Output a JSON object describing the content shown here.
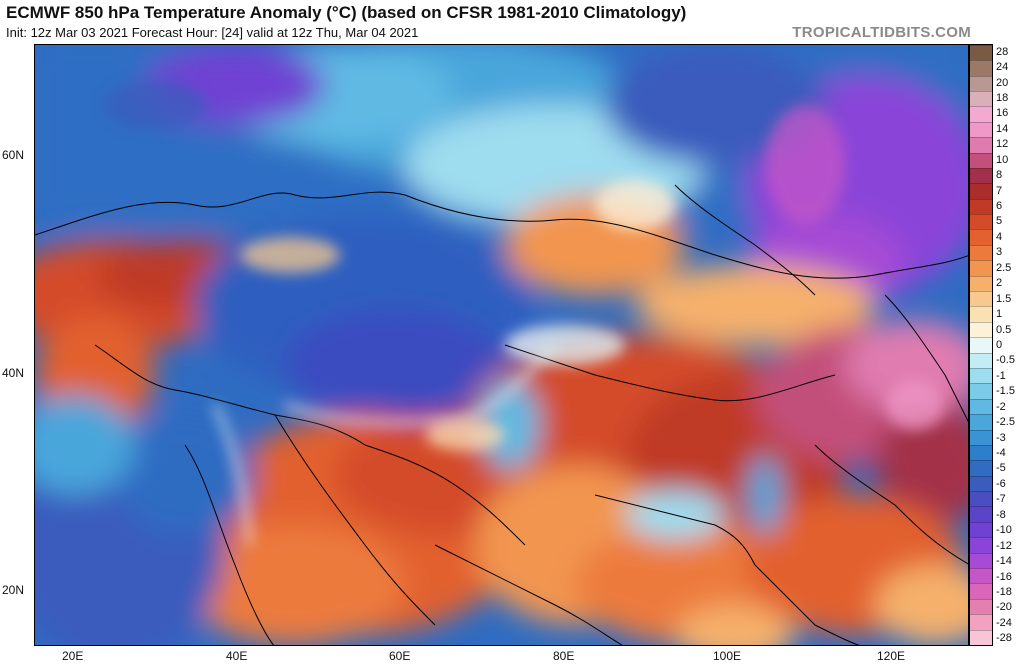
{
  "header": {
    "title": "ECMWF 850 hPa Temperature Anomaly (°C) (based on CFSR 1981-2010 Climatology)",
    "subtitle": "Init: 12z Mar 03 2021   Forecast Hour: [24]   valid at 12z Thu, Mar 04 2021",
    "brand": "TROPICALTIDBITS.COM"
  },
  "map": {
    "lat_labels": [
      "60N",
      "40N",
      "20N"
    ],
    "lon_labels": [
      "20E",
      "40E",
      "60E",
      "80E",
      "100E",
      "120E"
    ]
  },
  "colorbar": {
    "levels": [
      "-28",
      "-24",
      "-20",
      "-18",
      "-16",
      "-14",
      "-12",
      "-10",
      "-8",
      "-7",
      "-6",
      "-5",
      "-4",
      "-3",
      "-2.5",
      "-2",
      "-1.5",
      "-1",
      "-0.5",
      "0",
      "0.5",
      "1",
      "1.5",
      "2",
      "2.5",
      "3",
      "4",
      "5",
      "6",
      "7",
      "8",
      "10",
      "12",
      "14",
      "16",
      "18",
      "20",
      "24",
      "28"
    ],
    "colors": [
      "#f6c6d6",
      "#f0a2c0",
      "#e47fb0",
      "#d966b8",
      "#c456c8",
      "#a64bd6",
      "#8a45d8",
      "#6f42d3",
      "#5a45c8",
      "#4a4ec0",
      "#3a5cbd",
      "#2f6cc2",
      "#2d7fcb",
      "#3a93d3",
      "#4aa6db",
      "#5fb9e3",
      "#7ccbe9",
      "#9edcef",
      "#c4ecf4",
      "#e8f7f8",
      "#fdf2d8",
      "#fbe0b4",
      "#f8c98e",
      "#f5b06c",
      "#f2954f",
      "#ec7a3c",
      "#e2612f",
      "#d44b29",
      "#c03a27",
      "#aa2d2a",
      "#a3304a",
      "#c2507a",
      "#e07bb0",
      "#f098c8",
      "#f2aad0",
      "#d9b0b8",
      "#b89890",
      "#9a7a66",
      "#7a5a42"
    ]
  }
}
